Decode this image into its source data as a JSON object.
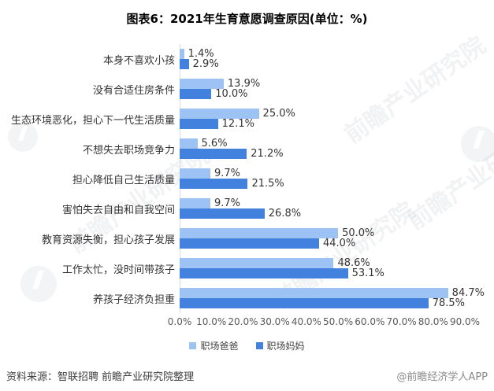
{
  "title": "图表6：2021年生育意愿调查原因(单位：%)",
  "chart_data": {
    "type": "bar",
    "orientation": "horizontal",
    "title": "图表6：2021年生育意愿调查原因(单位：%)",
    "unit": "%",
    "categories": [
      "本身不喜欢小孩",
      "没有合适住房条件",
      "生态环境恶化，担心下一代生活质量",
      "不想失去职场竞争力",
      "担心降低自己生活质量",
      "害怕失去自由和自我空间",
      "教育资源失衡，担心孩子发展",
      "工作太忙，没时间带孩子",
      "养孩子经济负担重"
    ],
    "series": [
      {
        "id": "dads",
        "name": "职场爸爸",
        "color": "#9DC3F5",
        "values": [
          1.4,
          13.9,
          25.0,
          5.6,
          9.7,
          9.7,
          50.0,
          48.6,
          84.7
        ]
      },
      {
        "id": "moms",
        "name": "职场妈妈",
        "color": "#4281DD",
        "values": [
          2.9,
          10.0,
          12.1,
          21.2,
          21.5,
          26.8,
          44.0,
          53.1,
          78.5
        ]
      }
    ],
    "x_ticks": [
      "0.0%",
      "10.0%",
      "20.0%",
      "30.0%",
      "40.0%",
      "50.0%",
      "60.0%",
      "70.0%",
      "80.0%",
      "90.0%"
    ],
    "xlim": [
      0,
      90
    ],
    "grid": false,
    "legend_position": "bottom",
    "value_label_format": "one-decimal-percent"
  },
  "footer": {
    "source": "资料来源：智联招聘 前瞻产业研究院整理",
    "credit": "@前瞻经济学人APP"
  },
  "watermark": {
    "text": "前瞻产业研究院"
  }
}
